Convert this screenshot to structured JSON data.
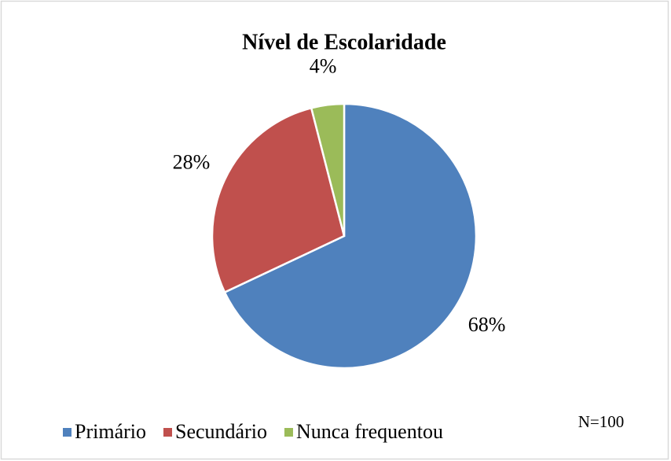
{
  "chart_data": {
    "type": "pie",
    "title": "Nível de Escolaridade",
    "categories": [
      "Primário",
      "Secundário",
      "Nunca frequentou"
    ],
    "values": [
      68,
      28,
      4
    ],
    "value_labels": [
      "68%",
      "28%",
      "4%"
    ],
    "colors": [
      "#4f81bd",
      "#c0504d",
      "#9bbb59"
    ],
    "legend": "bottom",
    "annotation": "N=100"
  }
}
